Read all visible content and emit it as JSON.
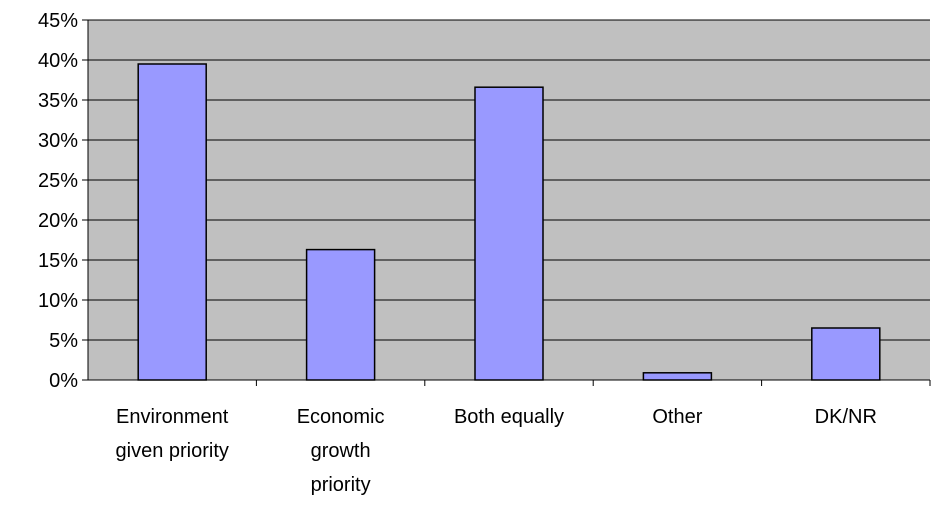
{
  "chart_data": {
    "type": "bar",
    "categories": [
      [
        "Environment",
        "given priority"
      ],
      [
        "Economic",
        "growth",
        "priority"
      ],
      [
        "Both equally"
      ],
      [
        "Other"
      ],
      [
        "DK/NR"
      ]
    ],
    "values": [
      39.5,
      16.3,
      36.6,
      0.9,
      6.5
    ],
    "ylim": [
      0,
      45
    ],
    "yticks": [
      "0%",
      "5%",
      "10%",
      "15%",
      "20%",
      "25%",
      "30%",
      "35%",
      "40%",
      "45%"
    ],
    "grid": true,
    "colors": {
      "plot_bg": "#c0c0c0",
      "bar_fill": "#9999ff",
      "bar_stroke": "#000000",
      "grid": "#000000"
    }
  }
}
